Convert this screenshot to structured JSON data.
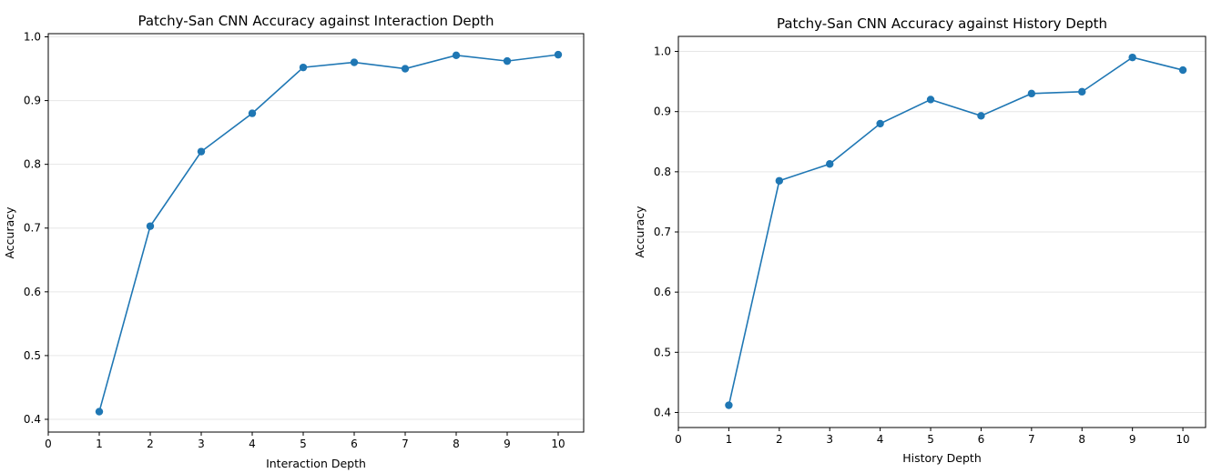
{
  "chart_data": [
    {
      "type": "line",
      "title": "Patchy-San CNN Accuracy against Interaction Depth",
      "xlabel": "Interaction Depth",
      "ylabel": "Accuracy",
      "xlim": [
        0,
        10.5
      ],
      "ylim": [
        0.38,
        1.005
      ],
      "xticks": [
        0,
        1,
        2,
        3,
        4,
        5,
        6,
        7,
        8,
        9,
        10
      ],
      "yticks": [
        0.4,
        0.5,
        0.6,
        0.7,
        0.8,
        0.9,
        1.0
      ],
      "ytick_labels": [
        "0.4",
        "0.5",
        "0.6",
        "0.7",
        "0.8",
        "0.9",
        "1.0"
      ],
      "grid": "y",
      "color": "#1f77b4",
      "series": [
        {
          "x": [
            1,
            2,
            3,
            4,
            5,
            6,
            7,
            8,
            9,
            10
          ],
          "values": [
            0.412,
            0.703,
            0.82,
            0.88,
            0.952,
            0.96,
            0.95,
            0.971,
            0.962,
            0.972
          ]
        }
      ]
    },
    {
      "type": "line",
      "title": "Patchy-San CNN Accuracy against History Depth",
      "xlabel": "History Depth",
      "ylabel": "Accuracy",
      "xlim": [
        0,
        10.45
      ],
      "ylim": [
        0.375,
        1.025
      ],
      "xticks": [
        0,
        1,
        2,
        3,
        4,
        5,
        6,
        7,
        8,
        9,
        10
      ],
      "yticks": [
        0.4,
        0.5,
        0.6,
        0.7,
        0.8,
        0.9,
        1.0
      ],
      "ytick_labels": [
        "0.4",
        "0.5",
        "0.6",
        "0.7",
        "0.8",
        "0.9",
        "1.0"
      ],
      "grid": "y",
      "color": "#1f77b4",
      "series": [
        {
          "x": [
            1,
            2,
            3,
            4,
            5,
            6,
            7,
            8,
            9,
            10
          ],
          "values": [
            0.412,
            0.785,
            0.813,
            0.88,
            0.92,
            0.893,
            0.93,
            0.933,
            0.99,
            0.969
          ]
        }
      ]
    }
  ]
}
